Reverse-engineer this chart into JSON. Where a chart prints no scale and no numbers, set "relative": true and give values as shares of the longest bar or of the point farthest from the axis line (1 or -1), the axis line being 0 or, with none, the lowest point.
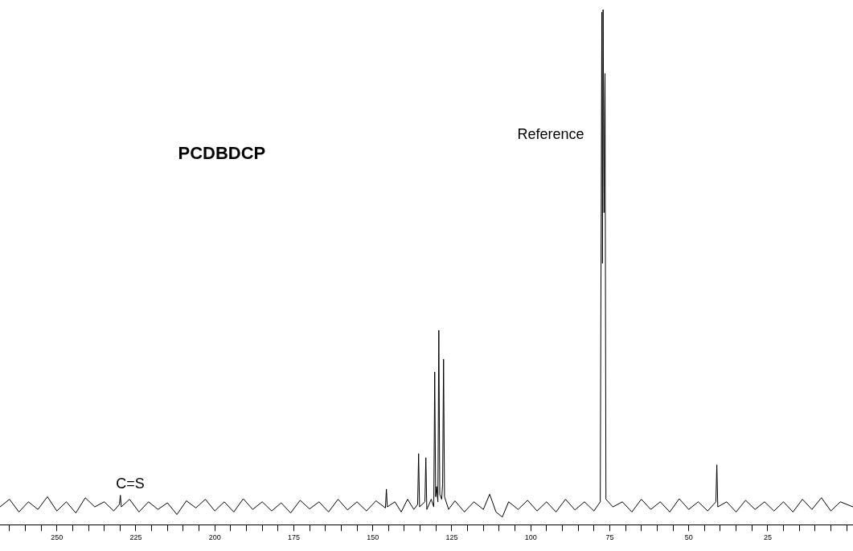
{
  "chart_data": {
    "type": "line",
    "title": "PCDBDCP",
    "relative": true,
    "color": "#000000",
    "marker": "none",
    "tick_labels": "x",
    "x": [
      268,
      265,
      262,
      259,
      256,
      253,
      250,
      247,
      244,
      241,
      238,
      235,
      232,
      230.2,
      229.9,
      229.6,
      227,
      224,
      221,
      218,
      215,
      212,
      209,
      206,
      203,
      200,
      197,
      194,
      191,
      188,
      185,
      182,
      179,
      176,
      173,
      170,
      167,
      164,
      161,
      158,
      155,
      152,
      149,
      146,
      145.7,
      145.4,
      143,
      141,
      139,
      137,
      135.8,
      135.5,
      135.2,
      133.5,
      133.2,
      132.9,
      131.5,
      130.7,
      130.4,
      130.1,
      129.8,
      129.4,
      129.1,
      128.8,
      128.2,
      127.9,
      127.6,
      127.3,
      126,
      124,
      121,
      118,
      115,
      113,
      111,
      109,
      107,
      104,
      101,
      98,
      95,
      92,
      89,
      86,
      83,
      80,
      78,
      77.5,
      77.3,
      77.1,
      76.8,
      76.5,
      76.2,
      74,
      71,
      68,
      65,
      62,
      59,
      56,
      53,
      50,
      47,
      44,
      41.4,
      41.1,
      40.8,
      38,
      35,
      32,
      29,
      26,
      23,
      20,
      17,
      14,
      11,
      8,
      5,
      2,
      -2
    ],
    "values": [
      0.02,
      0.035,
      0.01,
      0.03,
      0.015,
      0.04,
      0.012,
      0.03,
      0.008,
      0.038,
      0.02,
      0.03,
      0.012,
      0.025,
      0.043,
      0.02,
      0.035,
      0.01,
      0.03,
      0.015,
      0.028,
      0.005,
      0.032,
      0.018,
      0.035,
      0.012,
      0.03,
      0.01,
      0.036,
      0.015,
      0.03,
      0.012,
      0.028,
      0.008,
      0.033,
      0.016,
      0.03,
      0.01,
      0.035,
      0.014,
      0.03,
      0.012,
      0.032,
      0.018,
      0.055,
      0.02,
      0.03,
      0.01,
      0.035,
      0.015,
      0.025,
      0.125,
      0.02,
      0.03,
      0.117,
      0.015,
      0.035,
      0.02,
      0.286,
      0.04,
      0.06,
      0.03,
      0.368,
      0.045,
      0.035,
      0.065,
      0.311,
      0.04,
      0.015,
      0.032,
      0.01,
      0.03,
      0.015,
      0.045,
      0.01,
      0,
      0.03,
      0.015,
      0.033,
      0.012,
      0.03,
      0.01,
      0.035,
      0.014,
      0.03,
      0.012,
      0.03,
      0.995,
      0.5,
      1,
      0.6,
      0.874,
      0.035,
      0.02,
      0.03,
      0.01,
      0.035,
      0.015,
      0.03,
      0.01,
      0.036,
      0.015,
      0.03,
      0.012,
      0.03,
      0.103,
      0.02,
      0.03,
      0.01,
      0.033,
      0.015,
      0.03,
      0.012,
      0.03,
      0.01,
      0.035,
      0.015,
      0.038,
      0.012,
      0.03,
      0.02
    ],
    "xlim": [
      268,
      -2
    ],
    "xticks": [
      {
        "value": 265,
        "label": null
      },
      {
        "value": 260,
        "label": null
      },
      {
        "value": 255,
        "label": null
      },
      250,
      {
        "value": 245,
        "label": null
      },
      {
        "value": 240,
        "label": null
      },
      {
        "value": 235,
        "label": null
      },
      {
        "value": 230,
        "label": null
      },
      225,
      {
        "value": 220,
        "label": null
      },
      {
        "value": 215,
        "label": null
      },
      {
        "value": 210,
        "label": null
      },
      {
        "value": 205,
        "label": null
      },
      200,
      {
        "value": 195,
        "label": null
      },
      {
        "value": 190,
        "label": null
      },
      {
        "value": 185,
        "label": null
      },
      {
        "value": 180,
        "label": null
      },
      175,
      {
        "value": 170,
        "label": null
      },
      {
        "value": 165,
        "label": null
      },
      {
        "value": 160,
        "label": null
      },
      {
        "value": 155,
        "label": null
      },
      150,
      {
        "value": 145,
        "label": null
      },
      {
        "value": 140,
        "label": null
      },
      {
        "value": 135,
        "label": null
      },
      {
        "value": 130,
        "label": null
      },
      125,
      {
        "value": 120,
        "label": null
      },
      {
        "value": 115,
        "label": null
      },
      {
        "value": 110,
        "label": null
      },
      {
        "value": 105,
        "label": null
      },
      100,
      {
        "value": 95,
        "label": null
      },
      {
        "value": 90,
        "label": null
      },
      {
        "value": 85,
        "label": null
      },
      {
        "value": 80,
        "label": null
      },
      75,
      {
        "value": 70,
        "label": null
      },
      {
        "value": 65,
        "label": null
      },
      {
        "value": 60,
        "label": null
      },
      {
        "value": 55,
        "label": null
      },
      50,
      {
        "value": 45,
        "label": null
      },
      {
        "value": 40,
        "label": null
      },
      {
        "value": 35,
        "label": null
      },
      {
        "value": 30,
        "label": null
      },
      25,
      {
        "value": 20,
        "label": null
      },
      {
        "value": 15,
        "label": null
      },
      {
        "value": 10,
        "label": null
      },
      {
        "value": 5,
        "label": null
      },
      {
        "value": 0,
        "label": null
      }
    ],
    "annotations": [
      "Reference",
      "C=S"
    ]
  }
}
